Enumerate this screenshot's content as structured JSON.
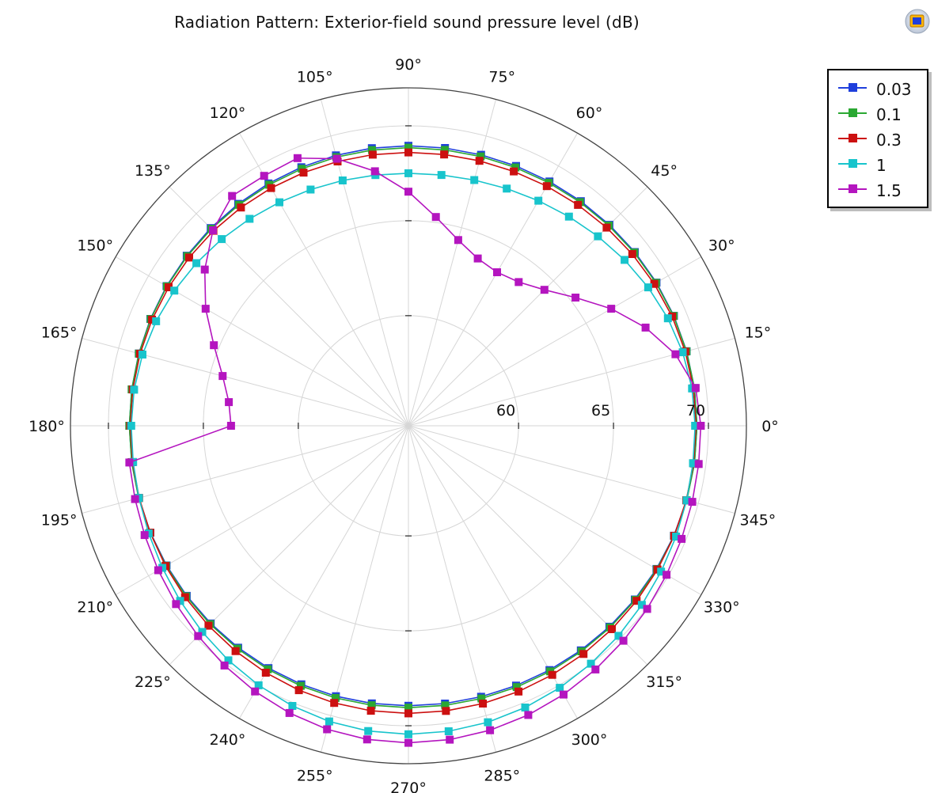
{
  "chart_data": {
    "type": "polar-line",
    "title": "Radiation Pattern: Exterior-field sound pressure level (dB)",
    "angle_unit": "deg",
    "angle_ticks": [
      0,
      15,
      30,
      45,
      60,
      75,
      90,
      105,
      120,
      135,
      150,
      165,
      180,
      195,
      210,
      225,
      240,
      255,
      270,
      285,
      300,
      315,
      330,
      345
    ],
    "angle_tick_labels": [
      "0°",
      "15°",
      "30°",
      "45°",
      "60°",
      "75°",
      "90°",
      "105°",
      "120°",
      "135°",
      "150°",
      "165°",
      "180°",
      "195°",
      "210°",
      "225°",
      "240°",
      "255°",
      "270°",
      "285°",
      "300°",
      "315°",
      "330°",
      "345°"
    ],
    "radial_range": [
      54.2,
      72.0
    ],
    "radial_ticks": [
      60,
      65,
      70
    ],
    "radial_tick_labels": [
      "60",
      "65",
      "70"
    ],
    "grid": true,
    "legend_position": "top-right",
    "sample_angles_deg_step": 7.5,
    "series": [
      {
        "name": "0.03",
        "color": "#1f3fdc",
        "model": {
          "type": "ellipse",
          "a_right": 69.4,
          "a_left": 68.9,
          "b_up": 68.95,
          "b_down": 68.95
        }
      },
      {
        "name": "0.1",
        "color": "#2aa832",
        "model": {
          "type": "ellipse",
          "a_right": 69.4,
          "a_left": 68.9,
          "b_up": 68.85,
          "b_down": 69.05
        }
      },
      {
        "name": "0.3",
        "color": "#cc1010",
        "model": {
          "type": "ellipse",
          "a_right": 69.35,
          "a_left": 68.85,
          "b_up": 68.6,
          "b_down": 69.35
        }
      },
      {
        "name": "1",
        "color": "#18c4cc",
        "model": {
          "type": "ellipse",
          "a_right": 69.3,
          "a_left": 68.8,
          "b_up": 67.5,
          "b_down": 70.45
        }
      },
      {
        "name": "1.5",
        "color": "#b415bf",
        "model": {
          "type": "fourier",
          "r_top": [
            69.6,
            69.46,
            68.76,
            67.72,
            66.53,
            65.29,
            64.33,
            63.74,
            63.54,
            63.74,
            64.33,
            65.29,
            66.53,
            67.72,
            68.76,
            69.46,
            69.4,
            69.46,
            68.76,
            67.72,
            66.53,
            65.29,
            64.33,
            63.74,
            63.54
          ],
          "b_down": 70.9,
          "a_right_low": 69.6,
          "a_left_low": 69.0
        }
      }
    ]
  },
  "legend": {
    "items": [
      {
        "label": "0.03",
        "color": "#1f3fdc"
      },
      {
        "label": "0.1",
        "color": "#2aa832"
      },
      {
        "label": "0.3",
        "color": "#cc1010"
      },
      {
        "label": "1",
        "color": "#18c4cc"
      },
      {
        "label": "1.5",
        "color": "#b415bf"
      }
    ]
  },
  "toolbar": {
    "logo_icon": "app-logo-icon"
  }
}
